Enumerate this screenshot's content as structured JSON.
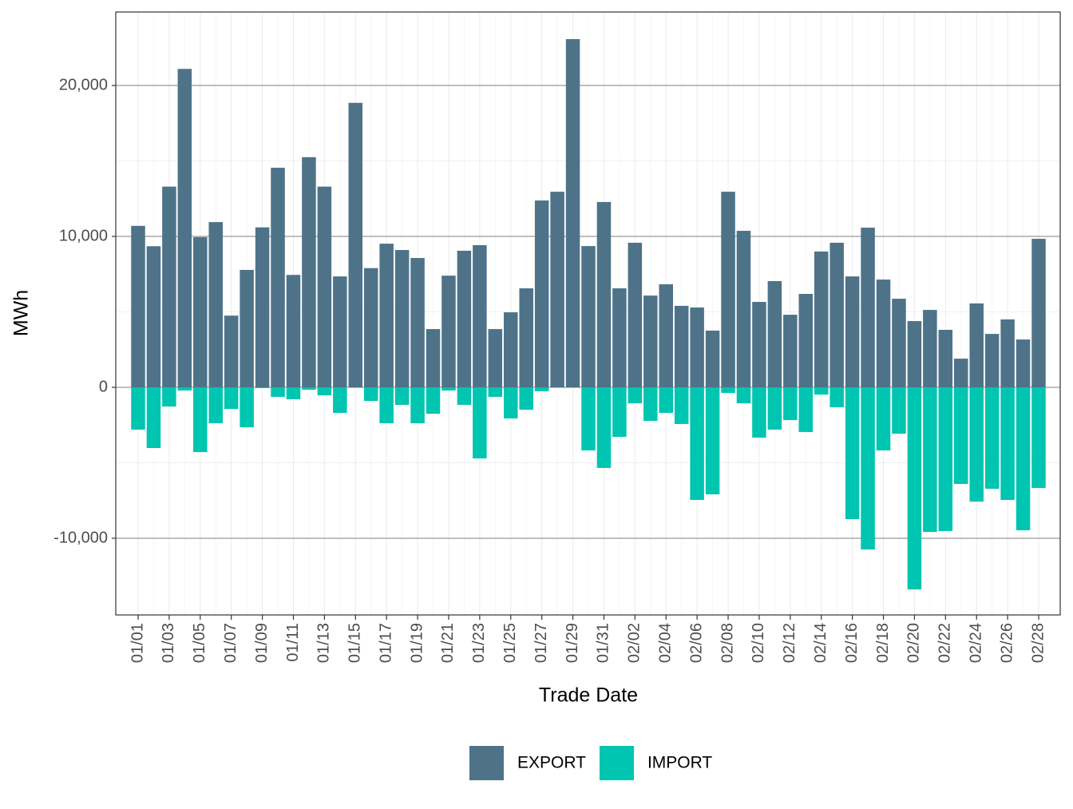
{
  "chart_data": {
    "type": "bar",
    "x_label": "Trade Date",
    "y_label": "MWh",
    "categories": [
      "01/01",
      null,
      "01/03",
      null,
      "01/05",
      null,
      "01/07",
      null,
      "01/09",
      null,
      "01/11",
      null,
      "01/13",
      null,
      "01/15",
      null,
      "01/17",
      null,
      "01/19",
      null,
      "01/21",
      null,
      "01/23",
      null,
      "01/25",
      null,
      "01/27",
      null,
      "01/29",
      null,
      "01/31",
      null,
      "02/02",
      null,
      "02/04",
      null,
      "02/06",
      null,
      "02/08",
      null,
      "02/10",
      null,
      "02/12",
      null,
      "02/14",
      null,
      "02/16",
      null,
      "02/18",
      null,
      "02/20",
      null,
      "02/22",
      null,
      "02/24",
      null,
      "02/26",
      null,
      "02/28"
    ],
    "series": [
      {
        "name": "EXPORT",
        "color": "#4e7389",
        "values": [
          10700,
          9350,
          13300,
          21100,
          9950,
          10950,
          4750,
          7780,
          10600,
          14550,
          7450,
          15250,
          13300,
          7350,
          18850,
          7900,
          9520,
          9100,
          8570,
          3860,
          7400,
          9050,
          9420,
          3860,
          4970,
          6560,
          12380,
          12960,
          23070,
          9360,
          12280,
          6560,
          9580,
          6080,
          6830,
          5400,
          5290,
          3760,
          12960,
          10370,
          5660,
          7040,
          4810,
          6190,
          9000,
          9580,
          7350,
          10580,
          7140,
          5870,
          4390,
          5130,
          3810,
          1900,
          5560,
          3540,
          4500,
          3170,
          9840
        ]
      },
      {
        "name": "IMPORT",
        "color": "#00c5b0",
        "values": [
          -2800,
          -4020,
          -1270,
          -210,
          -4290,
          -2380,
          -1430,
          -2650,
          -50,
          -630,
          -790,
          -160,
          -530,
          -1690,
          0,
          -900,
          -2380,
          -1160,
          -2380,
          -1750,
          -210,
          -1160,
          -4710,
          -630,
          -2060,
          -1480,
          -260,
          0,
          0,
          -4180,
          -5340,
          -3280,
          -1060,
          -2220,
          -1690,
          -2430,
          -7460,
          -7090,
          -370,
          -1060,
          -3330,
          -2800,
          -2170,
          -2960,
          -480,
          -1320,
          -8730,
          -10740,
          -4180,
          -3070,
          -13390,
          -9580,
          -9520,
          -6400,
          -7570,
          -6720,
          -7460,
          -9470,
          -6670
        ]
      }
    ],
    "ylim": [
      -15080,
      24870
    ],
    "yticks": [
      {
        "value": -10000,
        "label": "-10,000"
      },
      0,
      {
        "value": 10000,
        "label": "10,000"
      },
      {
        "value": 20000,
        "label": "20,000"
      }
    ],
    "grid": true,
    "legend": "bottom"
  }
}
